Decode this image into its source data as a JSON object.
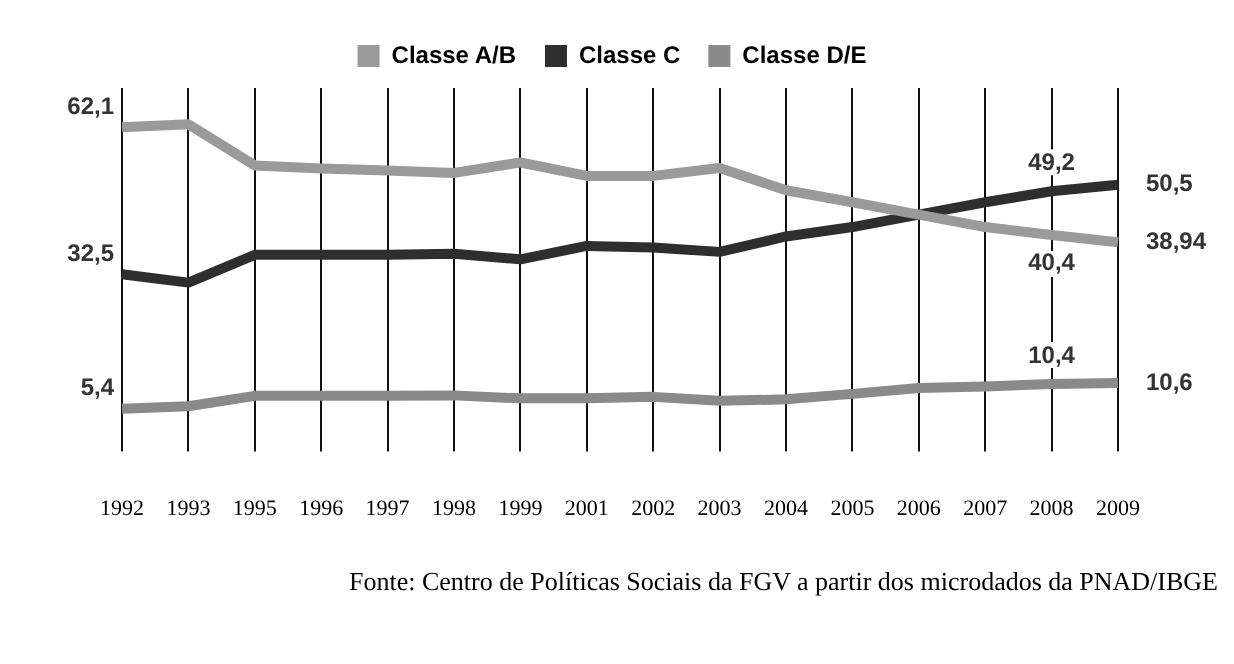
{
  "chart_data": {
    "type": "line",
    "categories": [
      "1992",
      "1993",
      "1995",
      "1996",
      "1997",
      "1998",
      "1999",
      "2001",
      "2002",
      "2003",
      "2004",
      "2005",
      "2006",
      "2007",
      "2008",
      "2009"
    ],
    "series": [
      {
        "name": "Classe A/B",
        "color": "#9a9a9a",
        "values": [
          62.1,
          62.7,
          54.4,
          53.8,
          53.4,
          52.9,
          55.0,
          52.3,
          52.3,
          53.9,
          49.4,
          47.0,
          44.5,
          42.0,
          40.4,
          38.94
        ],
        "value_labels": [
          "62,1",
          null,
          null,
          null,
          null,
          null,
          null,
          null,
          null,
          null,
          null,
          null,
          null,
          null,
          "40,4",
          "38,94"
        ]
      },
      {
        "name": "Classe C",
        "color": "#2e2e2e",
        "values": [
          32.5,
          30.8,
          36.4,
          36.4,
          36.4,
          36.6,
          35.5,
          38.2,
          37.9,
          37.0,
          40.1,
          42.0,
          44.5,
          47.0,
          49.2,
          50.5
        ],
        "value_labels": [
          "32,5",
          null,
          null,
          null,
          null,
          null,
          null,
          null,
          null,
          null,
          null,
          null,
          null,
          null,
          "49,2",
          "50,5"
        ]
      },
      {
        "name": "Classe D/E",
        "color": "#8a8a8a",
        "values": [
          5.4,
          5.9,
          8.0,
          8.0,
          8.0,
          8.1,
          7.5,
          7.5,
          7.8,
          7.0,
          7.3,
          8.4,
          9.6,
          9.9,
          10.4,
          10.6
        ],
        "value_labels": [
          "5,4",
          null,
          null,
          null,
          null,
          null,
          null,
          null,
          null,
          null,
          null,
          null,
          null,
          null,
          "10,4",
          "10,6"
        ]
      }
    ],
    "grid": "x",
    "legend": "top",
    "annotations": [
      "Fonte: Centro de Políticas Sociais da FGV a partir dos microdados da PNAD/IBGE"
    ]
  }
}
